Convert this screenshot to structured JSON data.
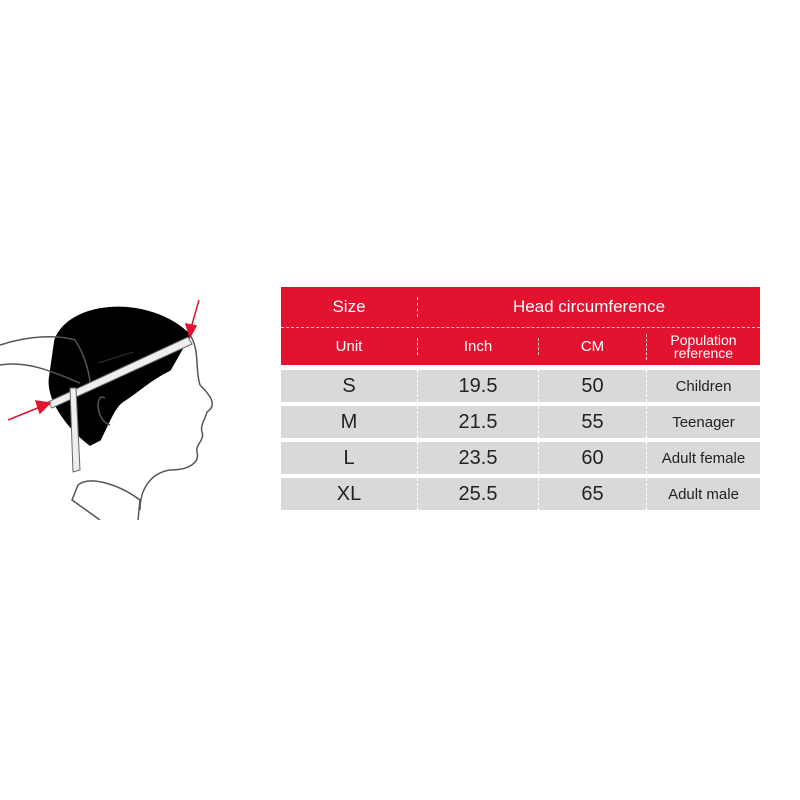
{
  "colors": {
    "header": "#e3132f",
    "row": "#d9d9d9",
    "arrow": "#e3132f"
  },
  "illustration": {
    "icon": "head-measurement-illustration"
  },
  "table": {
    "header": {
      "size": "Size",
      "group": "Head circumference"
    },
    "units": {
      "unit": "Unit",
      "inch": "Inch",
      "cm": "CM",
      "population": "Population reference"
    },
    "rows": [
      {
        "size": "S",
        "inch": "19.5",
        "cm": "50",
        "population": "Children"
      },
      {
        "size": "M",
        "inch": "21.5",
        "cm": "55",
        "population": "Teenager"
      },
      {
        "size": "L",
        "inch": "23.5",
        "cm": "60",
        "population": "Adult female"
      },
      {
        "size": "XL",
        "inch": "25.5",
        "cm": "65",
        "population": "Adult male"
      }
    ]
  }
}
